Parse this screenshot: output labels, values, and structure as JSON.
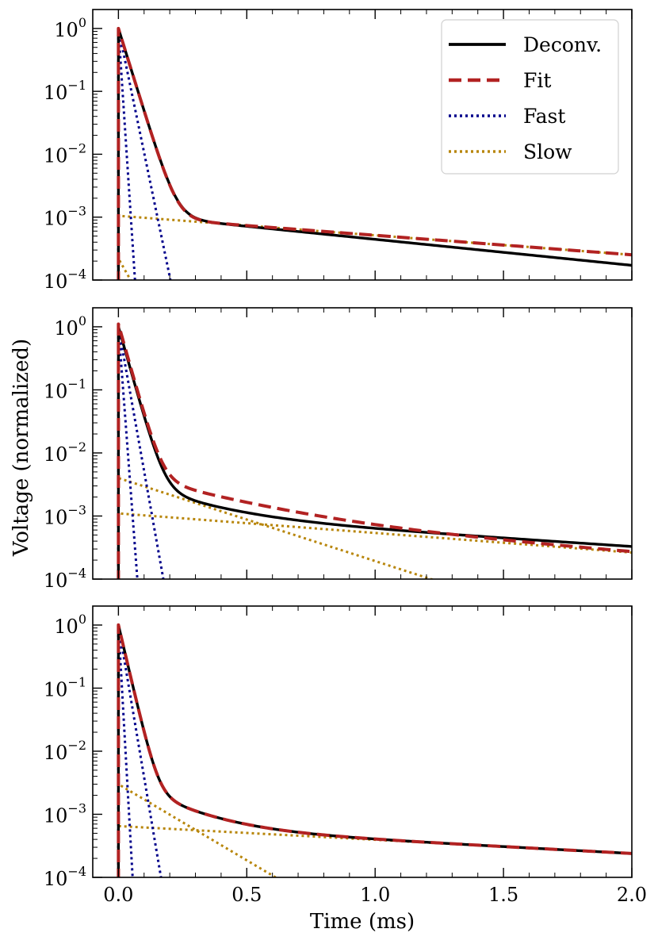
{
  "chart_data": [
    {
      "type": "line",
      "panel": "top",
      "yscale": "log",
      "xlim": [
        -0.1,
        2.0
      ],
      "ylim": [
        0.0001,
        2.0
      ],
      "y_tick_exponents": [
        0,
        -1,
        -2,
        -3,
        -4
      ],
      "x_major_ticks": [
        0,
        0.5,
        1.0,
        1.5,
        2.0
      ],
      "show_legend": true,
      "series": [
        {
          "name": "Deconv.",
          "style": "solid",
          "color": "#000000",
          "A1": 1.0,
          "tau1_ms": 0.033,
          "A2": 0.00115,
          "tau2_ms": 1.05
        },
        {
          "name": "Fit",
          "style": "dashed",
          "color": "#b22222",
          "A1": 1.0,
          "tau1_ms": 0.033,
          "A2": 0.00105,
          "tau2_ms": 1.4
        },
        {
          "name": "Fast",
          "style": "dotted",
          "color": "#00008b",
          "components": [
            {
              "A": 1.0,
              "tau_ms": 0.007
            },
            {
              "A": 1.0,
              "tau_ms": 0.022
            }
          ]
        },
        {
          "name": "Slow",
          "style": "dotted",
          "color": "#b8860b",
          "components": [
            {
              "A": 0.00105,
              "tau_ms": 1.4
            },
            {
              "A": 0.00022,
              "tau_ms": 0.06
            }
          ]
        }
      ]
    },
    {
      "type": "line",
      "panel": "middle",
      "yscale": "log",
      "xlim": [
        -0.1,
        2.0
      ],
      "ylim": [
        0.0001,
        2.0
      ],
      "y_tick_exponents": [
        0,
        -1,
        -2,
        -3,
        -4
      ],
      "x_major_ticks": [
        0,
        0.5,
        1.0,
        1.5,
        2.0
      ],
      "show_legend": false,
      "series": [
        {
          "name": "Deconv.",
          "style": "solid",
          "color": "#000000",
          "A1": 1.0,
          "tau1_ms": 0.03,
          "A2": 0.003,
          "tau2_ms": 0.22,
          "A3": 0.00112,
          "tau3_ms": 1.63
        },
        {
          "name": "Fit",
          "style": "dashed",
          "color": "#b22222",
          "A1": 1.1,
          "tau1_ms": 0.03,
          "A2": 0.004,
          "tau2_ms": 0.33,
          "A3": 0.0011,
          "tau3_ms": 1.4
        },
        {
          "name": "Fast",
          "style": "dotted",
          "color": "#00008b",
          "components": [
            {
              "A": 1.0,
              "tau_ms": 0.008
            },
            {
              "A": 1.0,
              "tau_ms": 0.019
            }
          ]
        },
        {
          "name": "Slow",
          "style": "dotted",
          "color": "#b8860b",
          "components": [
            {
              "A": 0.004,
              "tau_ms": 0.33
            },
            {
              "A": 0.0011,
              "tau_ms": 1.4
            }
          ]
        }
      ]
    },
    {
      "type": "line",
      "panel": "bottom",
      "yscale": "log",
      "xlim": [
        -0.1,
        2.0
      ],
      "ylim": [
        0.0001,
        2.0
      ],
      "y_tick_exponents": [
        0,
        -1,
        -2,
        -3,
        -4
      ],
      "x_major_ticks": [
        0,
        0.5,
        1.0,
        1.5,
        2.0
      ],
      "show_legend": false,
      "series": [
        {
          "name": "Deconv.",
          "style": "solid",
          "color": "#000000",
          "A1": 1.0,
          "tau1_ms": 0.025,
          "A2": 0.003,
          "tau2_ms": 0.18,
          "A3": 0.00065,
          "tau3_ms": 2.0
        },
        {
          "name": "Fit",
          "style": "dashed",
          "color": "#b22222",
          "A1": 1.0,
          "tau1_ms": 0.025,
          "A2": 0.003,
          "tau2_ms": 0.18,
          "A3": 0.00065,
          "tau3_ms": 2.0
        },
        {
          "name": "Fast",
          "style": "dotted",
          "color": "#00008b",
          "components": [
            {
              "A": 1.0,
              "tau_ms": 0.006
            },
            {
              "A": 1.0,
              "tau_ms": 0.018
            }
          ]
        },
        {
          "name": "Slow",
          "style": "dotted",
          "color": "#b8860b",
          "components": [
            {
              "A": 0.003,
              "tau_ms": 0.18
            },
            {
              "A": 0.00065,
              "tau_ms": 2.0
            }
          ]
        }
      ]
    }
  ],
  "x_tick_labels": [
    "0.0",
    "0.5",
    "1.0",
    "1.5",
    "2.0"
  ],
  "y_tick_base": "10",
  "y_tick_exps": [
    "0",
    "−1",
    "−2",
    "−3",
    "−4"
  ],
  "xlabel": "Time (ms)",
  "ylabel": "Voltage (normalized)",
  "legend": {
    "placement": "top-right of top panel",
    "entries": [
      "Deconv.",
      "Fit",
      "Fast",
      "Slow"
    ]
  }
}
